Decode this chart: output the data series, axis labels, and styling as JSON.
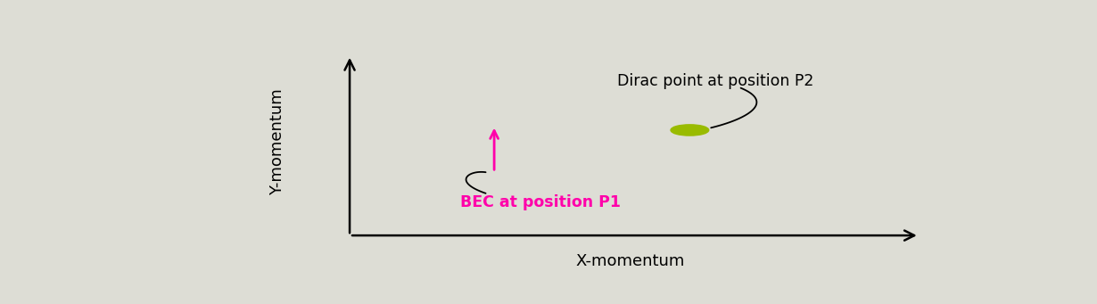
{
  "background_color": "#ddddd5",
  "xlabel": "X-momentum",
  "ylabel": "Y-momentum",
  "bec_color": "#ff00aa",
  "bec_label": "BEC at position P1",
  "dirac_color": "#99bb00",
  "dirac_label": "Dirac point at position P2",
  "font_size_labels": 13,
  "font_size_annotations": 12.5
}
